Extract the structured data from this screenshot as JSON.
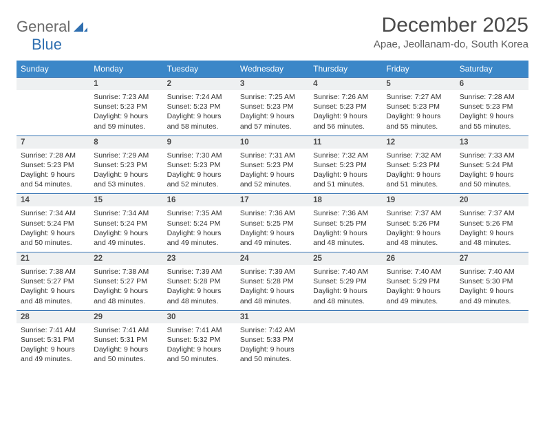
{
  "brand": {
    "general": "General",
    "blue": "Blue"
  },
  "header": {
    "month_title": "December 2025",
    "location": "Apae, Jeollanam-do, South Korea"
  },
  "colors": {
    "header_bg": "#3b87c8",
    "header_text": "#ffffff",
    "row_divider": "#2f6fb0",
    "daynum_bg": "#eef0f1",
    "body_text": "#333333",
    "logo_gray": "#6a6a6a",
    "logo_blue": "#2f6fb0"
  },
  "weekdays": [
    "Sunday",
    "Monday",
    "Tuesday",
    "Wednesday",
    "Thursday",
    "Friday",
    "Saturday"
  ],
  "weeks": [
    {
      "nums": [
        "",
        "1",
        "2",
        "3",
        "4",
        "5",
        "6"
      ],
      "cells": [
        null,
        {
          "sunrise": "Sunrise: 7:23 AM",
          "sunset": "Sunset: 5:23 PM",
          "daylight": "Daylight: 9 hours and 59 minutes."
        },
        {
          "sunrise": "Sunrise: 7:24 AM",
          "sunset": "Sunset: 5:23 PM",
          "daylight": "Daylight: 9 hours and 58 minutes."
        },
        {
          "sunrise": "Sunrise: 7:25 AM",
          "sunset": "Sunset: 5:23 PM",
          "daylight": "Daylight: 9 hours and 57 minutes."
        },
        {
          "sunrise": "Sunrise: 7:26 AM",
          "sunset": "Sunset: 5:23 PM",
          "daylight": "Daylight: 9 hours and 56 minutes."
        },
        {
          "sunrise": "Sunrise: 7:27 AM",
          "sunset": "Sunset: 5:23 PM",
          "daylight": "Daylight: 9 hours and 55 minutes."
        },
        {
          "sunrise": "Sunrise: 7:28 AM",
          "sunset": "Sunset: 5:23 PM",
          "daylight": "Daylight: 9 hours and 55 minutes."
        }
      ]
    },
    {
      "nums": [
        "7",
        "8",
        "9",
        "10",
        "11",
        "12",
        "13"
      ],
      "cells": [
        {
          "sunrise": "Sunrise: 7:28 AM",
          "sunset": "Sunset: 5:23 PM",
          "daylight": "Daylight: 9 hours and 54 minutes."
        },
        {
          "sunrise": "Sunrise: 7:29 AM",
          "sunset": "Sunset: 5:23 PM",
          "daylight": "Daylight: 9 hours and 53 minutes."
        },
        {
          "sunrise": "Sunrise: 7:30 AM",
          "sunset": "Sunset: 5:23 PM",
          "daylight": "Daylight: 9 hours and 52 minutes."
        },
        {
          "sunrise": "Sunrise: 7:31 AM",
          "sunset": "Sunset: 5:23 PM",
          "daylight": "Daylight: 9 hours and 52 minutes."
        },
        {
          "sunrise": "Sunrise: 7:32 AM",
          "sunset": "Sunset: 5:23 PM",
          "daylight": "Daylight: 9 hours and 51 minutes."
        },
        {
          "sunrise": "Sunrise: 7:32 AM",
          "sunset": "Sunset: 5:23 PM",
          "daylight": "Daylight: 9 hours and 51 minutes."
        },
        {
          "sunrise": "Sunrise: 7:33 AM",
          "sunset": "Sunset: 5:24 PM",
          "daylight": "Daylight: 9 hours and 50 minutes."
        }
      ]
    },
    {
      "nums": [
        "14",
        "15",
        "16",
        "17",
        "18",
        "19",
        "20"
      ],
      "cells": [
        {
          "sunrise": "Sunrise: 7:34 AM",
          "sunset": "Sunset: 5:24 PM",
          "daylight": "Daylight: 9 hours and 50 minutes."
        },
        {
          "sunrise": "Sunrise: 7:34 AM",
          "sunset": "Sunset: 5:24 PM",
          "daylight": "Daylight: 9 hours and 49 minutes."
        },
        {
          "sunrise": "Sunrise: 7:35 AM",
          "sunset": "Sunset: 5:24 PM",
          "daylight": "Daylight: 9 hours and 49 minutes."
        },
        {
          "sunrise": "Sunrise: 7:36 AM",
          "sunset": "Sunset: 5:25 PM",
          "daylight": "Daylight: 9 hours and 49 minutes."
        },
        {
          "sunrise": "Sunrise: 7:36 AM",
          "sunset": "Sunset: 5:25 PM",
          "daylight": "Daylight: 9 hours and 48 minutes."
        },
        {
          "sunrise": "Sunrise: 7:37 AM",
          "sunset": "Sunset: 5:26 PM",
          "daylight": "Daylight: 9 hours and 48 minutes."
        },
        {
          "sunrise": "Sunrise: 7:37 AM",
          "sunset": "Sunset: 5:26 PM",
          "daylight": "Daylight: 9 hours and 48 minutes."
        }
      ]
    },
    {
      "nums": [
        "21",
        "22",
        "23",
        "24",
        "25",
        "26",
        "27"
      ],
      "cells": [
        {
          "sunrise": "Sunrise: 7:38 AM",
          "sunset": "Sunset: 5:27 PM",
          "daylight": "Daylight: 9 hours and 48 minutes."
        },
        {
          "sunrise": "Sunrise: 7:38 AM",
          "sunset": "Sunset: 5:27 PM",
          "daylight": "Daylight: 9 hours and 48 minutes."
        },
        {
          "sunrise": "Sunrise: 7:39 AM",
          "sunset": "Sunset: 5:28 PM",
          "daylight": "Daylight: 9 hours and 48 minutes."
        },
        {
          "sunrise": "Sunrise: 7:39 AM",
          "sunset": "Sunset: 5:28 PM",
          "daylight": "Daylight: 9 hours and 48 minutes."
        },
        {
          "sunrise": "Sunrise: 7:40 AM",
          "sunset": "Sunset: 5:29 PM",
          "daylight": "Daylight: 9 hours and 48 minutes."
        },
        {
          "sunrise": "Sunrise: 7:40 AM",
          "sunset": "Sunset: 5:29 PM",
          "daylight": "Daylight: 9 hours and 49 minutes."
        },
        {
          "sunrise": "Sunrise: 7:40 AM",
          "sunset": "Sunset: 5:30 PM",
          "daylight": "Daylight: 9 hours and 49 minutes."
        }
      ]
    },
    {
      "nums": [
        "28",
        "29",
        "30",
        "31",
        "",
        "",
        ""
      ],
      "cells": [
        {
          "sunrise": "Sunrise: 7:41 AM",
          "sunset": "Sunset: 5:31 PM",
          "daylight": "Daylight: 9 hours and 49 minutes."
        },
        {
          "sunrise": "Sunrise: 7:41 AM",
          "sunset": "Sunset: 5:31 PM",
          "daylight": "Daylight: 9 hours and 50 minutes."
        },
        {
          "sunrise": "Sunrise: 7:41 AM",
          "sunset": "Sunset: 5:32 PM",
          "daylight": "Daylight: 9 hours and 50 minutes."
        },
        {
          "sunrise": "Sunrise: 7:42 AM",
          "sunset": "Sunset: 5:33 PM",
          "daylight": "Daylight: 9 hours and 50 minutes."
        },
        null,
        null,
        null
      ]
    }
  ]
}
